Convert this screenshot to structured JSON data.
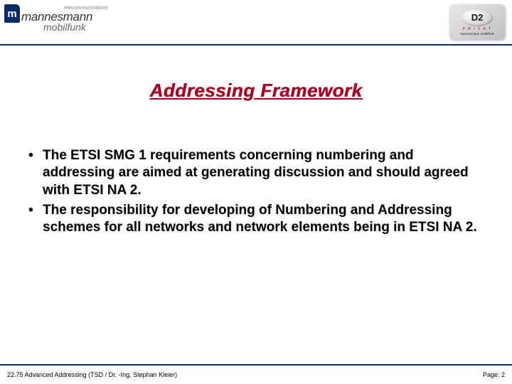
{
  "header": {
    "logo_left": {
      "tele": "telecommunications",
      "brand": "mannesmann",
      "sub": "mobilfunk",
      "mark": "m"
    },
    "logo_right": {
      "brand": "D2",
      "label": "P R I V A T",
      "tag": "mannesmann mobilfunk"
    }
  },
  "title": "Addressing Framework",
  "bullets": [
    "The ETSI SMG 1 requirements concerning numbering and addressing are aimed at generating discussion and should agreed with ETSI NA 2.",
    "The responsibility for developing of Numbering and Addressing schemes for all networks and network elements being in ETSI NA 2."
  ],
  "footer": {
    "left": "22.75 Advanced Addressing (TSD / Dr. -Ing. Stephan Kleier)",
    "right": "Page: 2"
  },
  "colors": {
    "accent_blue": "#0a2a6a",
    "accent_red": "#b00020",
    "text": "#000000",
    "background": "#ffffff"
  }
}
